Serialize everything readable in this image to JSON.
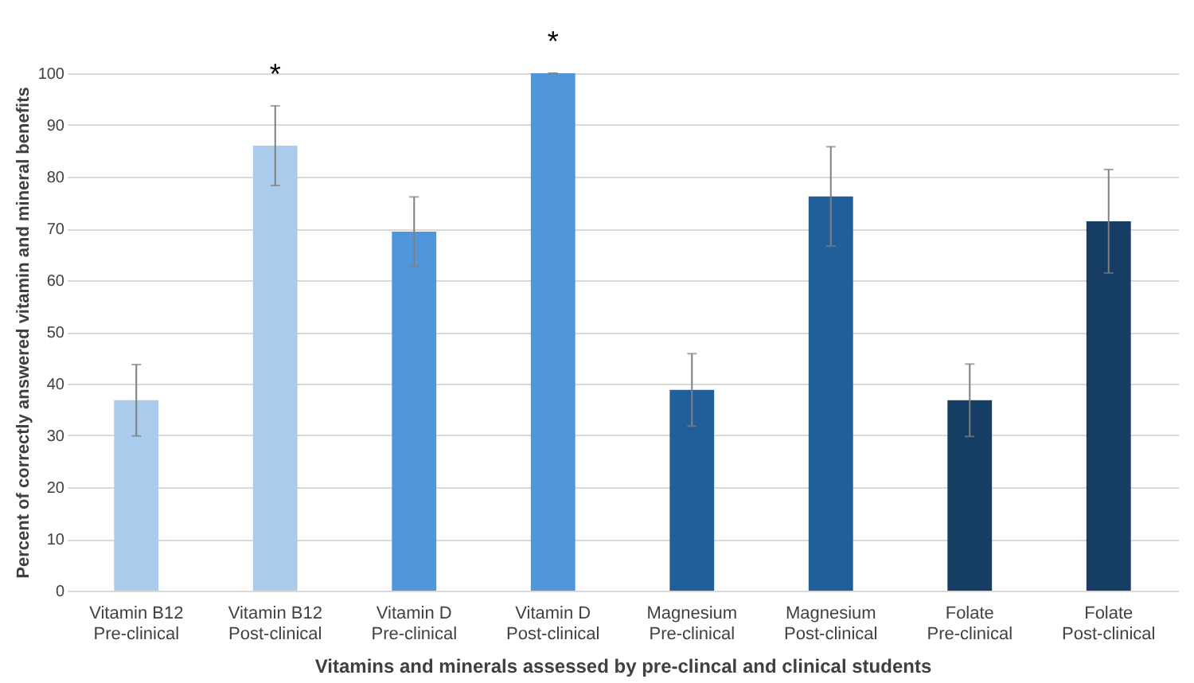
{
  "chart_data": {
    "type": "bar",
    "xlabel": "Vitamins and minerals assessed by pre-clincal and clinical students",
    "ylabel": "Percent of correctly answered vitamin and mineral benefits",
    "categories": [
      "Vitamin B12\nPre-clinical",
      "Vitamin B12\nPost-clinical",
      "Vitamin D\nPre-clinical",
      "Vitamin D\nPost-clinical",
      "Magnesium\nPre-clinical",
      "Magnesium\nPost-clinical",
      "Folate\nPre-clinical",
      "Folate\nPost-clinical"
    ],
    "values": [
      36.8,
      86,
      69.4,
      100,
      38.8,
      76.2,
      36.8,
      71.4
    ],
    "colors": [
      "#a9cbec",
      "#a9cbec",
      "#4f96db",
      "#4f96db",
      "#215f9a",
      "#215f9a",
      "#163d64",
      "#163d64"
    ],
    "errors": [
      6.9,
      7.7,
      6.7,
      0,
      7,
      9.6,
      7,
      10
    ],
    "ylim": [
      0,
      100
    ],
    "yticks": [
      0,
      10,
      20,
      30,
      40,
      50,
      60,
      70,
      80,
      90,
      100
    ],
    "grid": "y",
    "legend": false,
    "annotations": [
      {
        "text": "*",
        "x": "Vitamin B12\nPost-clinical",
        "y": 93.7
      },
      {
        "text": "*",
        "x": "Vitamin D\nPost-clinical",
        "y": 100
      }
    ]
  }
}
